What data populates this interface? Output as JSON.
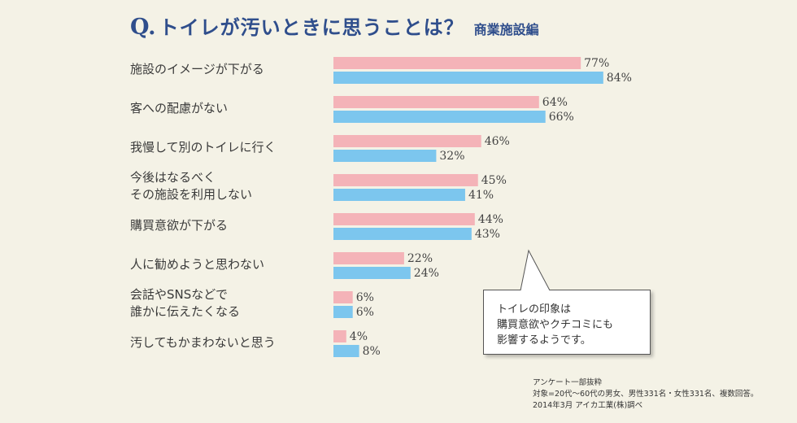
{
  "title": {
    "q": "Q.",
    "main": "トイレが汚いときに思うことは？",
    "sub": "商業施設編"
  },
  "colors": {
    "series_a": "#f4b3b8",
    "series_b": "#7cc6ee"
  },
  "chart_data": {
    "type": "bar",
    "orientation": "horizontal",
    "categories": [
      [
        "施設のイメージが下がる"
      ],
      [
        "客への配慮がない"
      ],
      [
        "我慢して別のトイレに行く"
      ],
      [
        "今後はなるべく",
        "その施設を利用しない"
      ],
      [
        "購買意欲が下がる"
      ],
      [
        "人に勧めようと思わない"
      ],
      [
        "会話やSNSなどで",
        "誰かに伝えたくなる"
      ],
      [
        "汚してもかまわないと思う"
      ]
    ],
    "series": [
      {
        "values": [
          77,
          64,
          46,
          45,
          44,
          22,
          6,
          4
        ]
      },
      {
        "values": [
          84,
          66,
          32,
          41,
          43,
          24,
          6,
          8
        ]
      }
    ],
    "unit": "%",
    "xlim": [
      0,
      100
    ],
    "grid": false,
    "legend": "none"
  },
  "callout": {
    "lines": [
      "トイレの印象は",
      "購買意欲やクチコミにも",
      "影響するようです。"
    ]
  },
  "footnote": {
    "lines": [
      "アンケート一部抜粋",
      "対象=20代〜60代の男女、男性331名・女性331名、複数回答。",
      "2014年3月 アイカ工業(株)調べ"
    ]
  }
}
